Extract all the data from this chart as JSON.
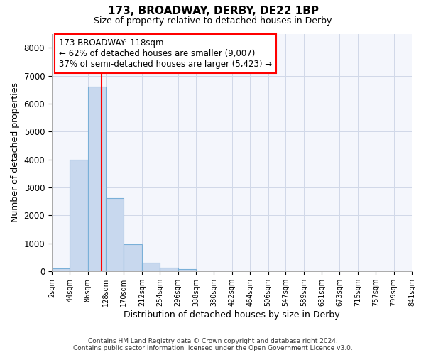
{
  "title1": "173, BROADWAY, DERBY, DE22 1BP",
  "title2": "Size of property relative to detached houses in Derby",
  "xlabel": "Distribution of detached houses by size in Derby",
  "ylabel": "Number of detached properties",
  "bin_edges": [
    2,
    44,
    86,
    128,
    170,
    212,
    254,
    296,
    338,
    380,
    422,
    464,
    506,
    547,
    589,
    631,
    673,
    715,
    757,
    799,
    841
  ],
  "bar_heights": [
    100,
    3980,
    6600,
    2620,
    960,
    320,
    130,
    80,
    0,
    0,
    0,
    0,
    0,
    0,
    0,
    0,
    0,
    0,
    0,
    0
  ],
  "bar_color": "#c8d8ee",
  "bar_edgecolor": "#7ab0d8",
  "vline_x": 118,
  "vline_color": "red",
  "annotation_line1": "173 BROADWAY: 118sqm",
  "annotation_line2": "← 62% of detached houses are smaller (9,007)",
  "annotation_line3": "37% of semi-detached houses are larger (5,423) →",
  "annotation_box_color": "white",
  "annotation_box_edgecolor": "red",
  "ylim": [
    0,
    8500
  ],
  "yticks": [
    0,
    1000,
    2000,
    3000,
    4000,
    5000,
    6000,
    7000,
    8000
  ],
  "grid_color": "#d0d8e8",
  "background_color": "#f4f6fc",
  "footer1": "Contains HM Land Registry data © Crown copyright and database right 2024.",
  "footer2": "Contains public sector information licensed under the Open Government Licence v3.0."
}
